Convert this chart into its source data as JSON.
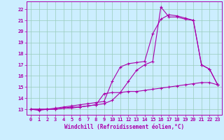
{
  "xlabel": "Windchill (Refroidissement éolien,°C)",
  "bg_color": "#cceeff",
  "grid_color": "#99ccbb",
  "line_color": "#aa00aa",
  "xlim": [
    -0.5,
    23.5
  ],
  "ylim": [
    12.5,
    22.7
  ],
  "yticks": [
    13,
    14,
    15,
    16,
    17,
    18,
    19,
    20,
    21,
    22
  ],
  "xticks": [
    0,
    1,
    2,
    3,
    4,
    5,
    6,
    7,
    8,
    9,
    10,
    11,
    12,
    13,
    14,
    15,
    16,
    17,
    18,
    19,
    20,
    21,
    22,
    23
  ],
  "line1_x": [
    0,
    1,
    2,
    3,
    4,
    5,
    6,
    7,
    8,
    9,
    10,
    11,
    12,
    13,
    14,
    15,
    16,
    17,
    18,
    19,
    20,
    21,
    22,
    23
  ],
  "line1_y": [
    13.0,
    12.9,
    13.0,
    13.0,
    13.1,
    13.2,
    13.2,
    13.3,
    13.4,
    13.5,
    13.8,
    14.5,
    15.5,
    16.5,
    17.0,
    17.3,
    22.2,
    21.3,
    21.3,
    21.1,
    21.0,
    17.0,
    16.6,
    15.2
  ],
  "line2_x": [
    0,
    1,
    2,
    3,
    4,
    5,
    6,
    7,
    8,
    9,
    10,
    11,
    12,
    13,
    14,
    15,
    16,
    17,
    18,
    19,
    20,
    21,
    22,
    23
  ],
  "line2_y": [
    13.0,
    13.0,
    13.0,
    13.1,
    13.2,
    13.3,
    13.4,
    13.5,
    13.6,
    13.7,
    15.5,
    16.8,
    17.1,
    17.2,
    17.3,
    19.8,
    21.1,
    21.5,
    21.4,
    21.2,
    21.0,
    17.0,
    16.6,
    15.2
  ],
  "line3_x": [
    0,
    1,
    2,
    3,
    4,
    5,
    6,
    7,
    8,
    9,
    10,
    11,
    12,
    13,
    14,
    15,
    16,
    17,
    18,
    19,
    20,
    21,
    22,
    23
  ],
  "line3_y": [
    13.0,
    13.0,
    13.0,
    13.0,
    13.1,
    13.1,
    13.2,
    13.3,
    13.4,
    14.4,
    14.5,
    14.5,
    14.6,
    14.6,
    14.7,
    14.8,
    14.9,
    15.0,
    15.1,
    15.2,
    15.3,
    15.4,
    15.4,
    15.2
  ]
}
